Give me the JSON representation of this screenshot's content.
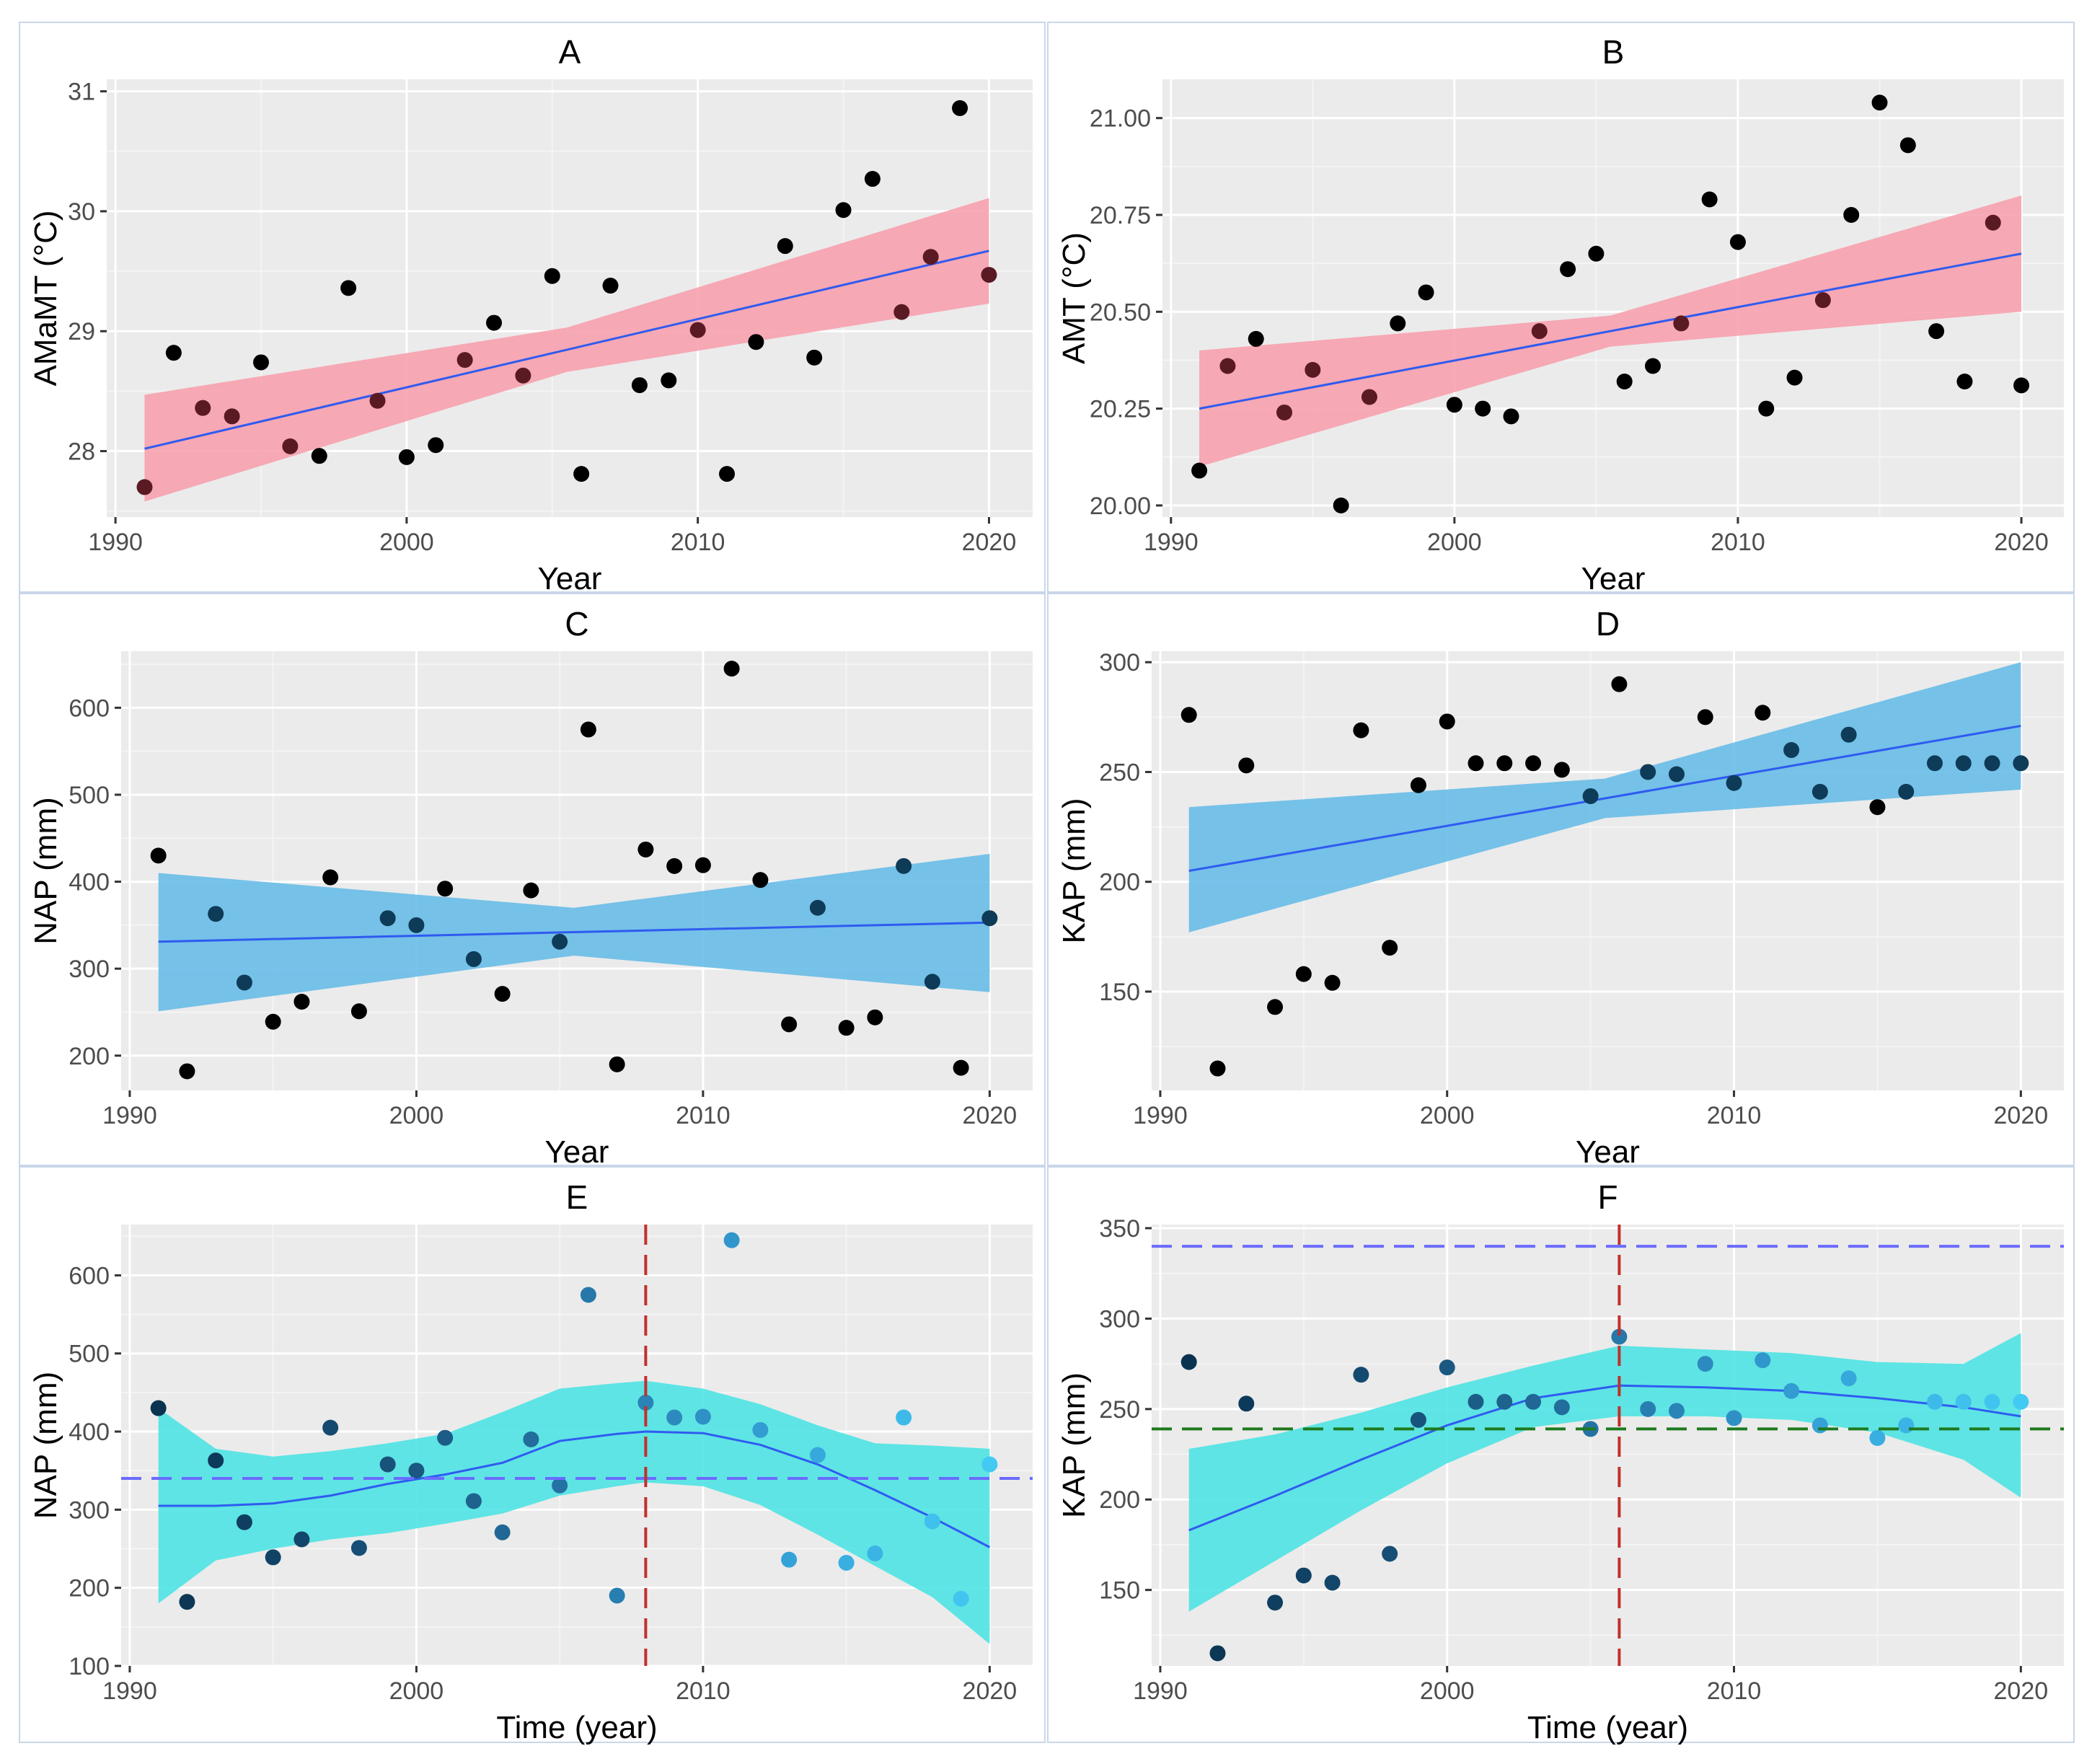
{
  "colors": {
    "plot_bg": "#ebebeb",
    "grid_major": "#ffffff",
    "grid_minor": "#f4f4f4",
    "point": "#000000",
    "trend_line": "#2f5bf0",
    "band_pink": "#f7a1ae",
    "band_blue": "#68bde8",
    "band_cyan": "#4fe3e3",
    "hline_blue": "#6b6bff",
    "hline_green": "#1e7a1e",
    "vline_red": "#c0302c"
  },
  "chart_data": [
    {
      "id": "A",
      "type": "scatter",
      "title": "A",
      "xlabel": "Year",
      "ylabel": "AMaMT (°C)",
      "xlim": [
        1989.7,
        2021.5
      ],
      "ylim": [
        27.45,
        31.1
      ],
      "xticks": [
        1990,
        2000,
        2010,
        2020
      ],
      "xtick_labels": [
        "1990",
        "2000",
        "2010",
        "2020"
      ],
      "yticks": [
        28,
        29,
        30,
        31
      ],
      "ytick_labels": [
        "28",
        "29",
        "30",
        "31"
      ],
      "x": [
        1991,
        1992,
        1993,
        1994,
        1995,
        1996,
        1997,
        1998,
        1999,
        2000,
        2001,
        2002,
        2003,
        2004,
        2005,
        2006,
        2007,
        2008,
        2009,
        2010,
        2011,
        2012,
        2013,
        2014,
        2015,
        2016,
        2017,
        2018,
        2019,
        2020
      ],
      "y": [
        27.7,
        28.82,
        28.36,
        28.29,
        28.74,
        28.04,
        27.96,
        29.36,
        28.42,
        27.95,
        28.05,
        28.76,
        29.07,
        28.63,
        29.46,
        27.81,
        29.38,
        28.55,
        28.59,
        29.01,
        27.81,
        28.91,
        29.71,
        28.78,
        30.01,
        30.27,
        29.16,
        29.62,
        30.86,
        29.47
      ],
      "fit": {
        "x": [
          1991,
          2020
        ],
        "y": [
          28.02,
          29.67
        ]
      },
      "band": {
        "x": [
          1991,
          2005.5,
          2020
        ],
        "lower": [
          27.58,
          28.66,
          29.23
        ],
        "upper": [
          28.47,
          29.03,
          30.11
        ]
      },
      "band_color": "#f7a1ae"
    },
    {
      "id": "B",
      "type": "scatter",
      "title": "B",
      "xlabel": "Year",
      "ylabel": "AMT (°C)",
      "xlim": [
        1989.7,
        2021.5
      ],
      "ylim": [
        19.97,
        21.1
      ],
      "xticks": [
        1990,
        2000,
        2010,
        2020
      ],
      "xtick_labels": [
        "1990",
        "2000",
        "2010",
        "2020"
      ],
      "yticks": [
        20.0,
        20.25,
        20.5,
        20.75,
        21.0
      ],
      "ytick_labels": [
        "20.00",
        "20.25",
        "20.50",
        "20.75",
        "21.00"
      ],
      "x": [
        1991,
        1992,
        1993,
        1994,
        1995,
        1996,
        1997,
        1998,
        1999,
        2000,
        2001,
        2002,
        2003,
        2004,
        2005,
        2006,
        2007,
        2008,
        2009,
        2010,
        2011,
        2012,
        2013,
        2014,
        2015,
        2016,
        2017,
        2018,
        2019,
        2020
      ],
      "y": [
        20.09,
        20.36,
        20.43,
        20.24,
        20.35,
        20.0,
        20.28,
        20.47,
        20.55,
        20.26,
        20.25,
        20.23,
        20.45,
        20.61,
        20.65,
        20.32,
        20.36,
        20.47,
        20.79,
        20.68,
        20.25,
        20.33,
        20.53,
        20.75,
        21.04,
        20.93,
        20.45,
        20.32,
        20.73,
        20.31
      ],
      "fit": {
        "x": [
          1991,
          2020
        ],
        "y": [
          20.25,
          20.65
        ]
      },
      "band": {
        "x": [
          1991,
          2005.5,
          2020
        ],
        "lower": [
          20.1,
          20.41,
          20.5
        ],
        "upper": [
          20.4,
          20.49,
          20.8
        ]
      },
      "band_color": "#f7a1ae"
    },
    {
      "id": "C",
      "type": "scatter",
      "title": "C",
      "xlabel": "Year",
      "ylabel": "NAP (mm)",
      "xlim": [
        1989.7,
        2021.5
      ],
      "ylim": [
        160,
        665
      ],
      "xticks": [
        1990,
        2000,
        2010,
        2020
      ],
      "xtick_labels": [
        "1990",
        "2000",
        "2010",
        "2020"
      ],
      "yticks": [
        200,
        300,
        400,
        500,
        600
      ],
      "ytick_labels": [
        "200",
        "300",
        "400",
        "500",
        "600"
      ],
      "x": [
        1991,
        1992,
        1993,
        1994,
        1995,
        1996,
        1997,
        1998,
        1999,
        2000,
        2001,
        2002,
        2003,
        2004,
        2005,
        2006,
        2007,
        2008,
        2009,
        2010,
        2011,
        2012,
        2013,
        2014,
        2015,
        2016,
        2017,
        2018,
        2019,
        2020
      ],
      "y": [
        430,
        182,
        363,
        284,
        239,
        262,
        405,
        251,
        358,
        350,
        392,
        311,
        271,
        390,
        331,
        575,
        190,
        437,
        418,
        419,
        645,
        402,
        236,
        370,
        232,
        244,
        418,
        285,
        186,
        358
      ],
      "fit": {
        "x": [
          1991,
          2020
        ],
        "y": [
          331,
          353
        ]
      },
      "band": {
        "x": [
          1991,
          2005.5,
          2020
        ],
        "lower": [
          251,
          315,
          273
        ],
        "upper": [
          410,
          370,
          432
        ]
      },
      "band_color": "#68bde8"
    },
    {
      "id": "D",
      "type": "scatter",
      "title": "D",
      "xlabel": "Year",
      "ylabel": "KAP (mm)",
      "xlim": [
        1989.7,
        2021.5
      ],
      "ylim": [
        105,
        305
      ],
      "xticks": [
        1990,
        2000,
        2010,
        2020
      ],
      "xtick_labels": [
        "1990",
        "2000",
        "2010",
        "2020"
      ],
      "yticks": [
        150,
        200,
        250,
        300
      ],
      "ytick_labels": [
        "150",
        "200",
        "250",
        "300"
      ],
      "x": [
        1991,
        1992,
        1993,
        1994,
        1995,
        1996,
        1997,
        1998,
        1999,
        2000,
        2001,
        2002,
        2003,
        2004,
        2005,
        2006,
        2007,
        2008,
        2009,
        2010,
        2011,
        2012,
        2013,
        2014,
        2015,
        2016,
        2017,
        2018,
        2019,
        2020
      ],
      "y": [
        276,
        115,
        253,
        143,
        158,
        154,
        269,
        170,
        244,
        273,
        254,
        254,
        254,
        251,
        239,
        290,
        250,
        249,
        275,
        245,
        277,
        260,
        241,
        267,
        234,
        241,
        254,
        254,
        254,
        254
      ],
      "fit": {
        "x": [
          1991,
          2020
        ],
        "y": [
          205,
          271
        ]
      },
      "band": {
        "x": [
          1991,
          2005.5,
          2020
        ],
        "lower": [
          177,
          229,
          242
        ],
        "upper": [
          234,
          247,
          300
        ]
      },
      "band_color": "#68bde8"
    },
    {
      "id": "E",
      "type": "scatter",
      "title": "E",
      "xlabel": "Time (year)",
      "ylabel": "NAP (mm)",
      "xlim": [
        1989.7,
        2021.5
      ],
      "ylim": [
        100,
        665
      ],
      "xticks": [
        1990,
        2000,
        2010,
        2020
      ],
      "xtick_labels": [
        "1990",
        "2000",
        "2010",
        "2020"
      ],
      "yticks": [
        100,
        200,
        300,
        400,
        500,
        600
      ],
      "ytick_labels": [
        "100",
        "200",
        "300",
        "400",
        "500",
        "600"
      ],
      "x": [
        1991,
        1992,
        1993,
        1994,
        1995,
        1996,
        1997,
        1998,
        1999,
        2000,
        2001,
        2002,
        2003,
        2004,
        2005,
        2006,
        2007,
        2008,
        2009,
        2010,
        2011,
        2012,
        2013,
        2014,
        2015,
        2016,
        2017,
        2018,
        2019,
        2020
      ],
      "y": [
        430,
        182,
        363,
        284,
        239,
        262,
        405,
        251,
        358,
        350,
        392,
        311,
        271,
        390,
        331,
        575,
        190,
        437,
        418,
        419,
        645,
        402,
        236,
        370,
        232,
        244,
        418,
        285,
        186,
        358
      ],
      "fit": {
        "x": [
          1991,
          1993,
          1995,
          1997,
          1999,
          2001,
          2003,
          2005,
          2007,
          2008,
          2010,
          2012,
          2014,
          2016,
          2018,
          2020
        ],
        "y": [
          305,
          305,
          308,
          318,
          333,
          345,
          360,
          388,
          397,
          400,
          398,
          383,
          358,
          325,
          290,
          252
        ]
      },
      "band": {
        "x": [
          1991,
          1993,
          1995,
          1997,
          1999,
          2001,
          2003,
          2005,
          2007,
          2008,
          2010,
          2012,
          2014,
          2016,
          2018,
          2020
        ],
        "lower": [
          180,
          235,
          250,
          262,
          270,
          282,
          295,
          318,
          330,
          335,
          330,
          306,
          268,
          228,
          188,
          128
        ],
        "upper": [
          430,
          378,
          368,
          375,
          385,
          397,
          425,
          455,
          462,
          465,
          455,
          435,
          408,
          385,
          382,
          378
        ]
      },
      "band_color": "#4fe3e3",
      "hlines": [
        {
          "y": 340,
          "color": "#6b6bff"
        }
      ],
      "vlines": [
        {
          "x": 2008,
          "color": "#c0302c"
        }
      ],
      "point_colors": [
        "#0a3350",
        "#0c3755",
        "#0d3a5a",
        "#0f3e60",
        "#104265",
        "#12466b",
        "#144a70",
        "#164e76",
        "#18537c",
        "#1a5882",
        "#1c5d88",
        "#1e628e",
        "#206795",
        "#226d9c",
        "#2472a3",
        "#2678aa",
        "#287eb1",
        "#2b84b8",
        "#2d8abf",
        "#2f90c6",
        "#3196cc",
        "#339cd2",
        "#35a2d7",
        "#37a8dc",
        "#39aee1",
        "#3bb4e5",
        "#3dbae9",
        "#3fc0ed",
        "#41c5f0",
        "#43caf3"
      ]
    },
    {
      "id": "F",
      "type": "scatter",
      "title": "F",
      "xlabel": "Time (year)",
      "ylabel": "KAP (mm)",
      "xlim": [
        1989.7,
        2021.5
      ],
      "ylim": [
        108,
        352
      ],
      "xticks": [
        1990,
        2000,
        2010,
        2020
      ],
      "xtick_labels": [
        "1990",
        "2000",
        "2010",
        "2020"
      ],
      "yticks": [
        150,
        200,
        250,
        300,
        350
      ],
      "ytick_labels": [
        "150",
        "200",
        "250",
        "300",
        "350"
      ],
      "x": [
        1991,
        1992,
        1993,
        1994,
        1995,
        1996,
        1997,
        1998,
        1999,
        2000,
        2001,
        2002,
        2003,
        2004,
        2005,
        2006,
        2007,
        2008,
        2009,
        2010,
        2011,
        2012,
        2013,
        2014,
        2015,
        2016,
        2017,
        2018,
        2019,
        2020
      ],
      "y": [
        276,
        115,
        253,
        143,
        158,
        154,
        269,
        170,
        244,
        273,
        254,
        254,
        254,
        251,
        239,
        290,
        250,
        249,
        275,
        245,
        277,
        260,
        241,
        267,
        234,
        241,
        254,
        254,
        254,
        254
      ],
      "fit": {
        "x": [
          1991,
          1994,
          1997,
          2000,
          2003,
          2006,
          2009,
          2012,
          2015,
          2018,
          2020
        ],
        "y": [
          183,
          202,
          222,
          241,
          256,
          263,
          262,
          260,
          256,
          251,
          246
        ]
      },
      "band": {
        "x": [
          1991,
          1994,
          1997,
          2000,
          2003,
          2006,
          2009,
          2012,
          2015,
          2018,
          2020
        ],
        "lower": [
          138,
          166,
          194,
          220,
          240,
          246,
          246,
          244,
          237,
          222,
          201
        ],
        "upper": [
          228,
          236,
          248,
          262,
          274,
          285,
          283,
          281,
          276,
          275,
          292
        ]
      },
      "band_color": "#4fe3e3",
      "hlines": [
        {
          "y": 340,
          "color": "#6b6bff"
        },
        {
          "y": 239,
          "color": "#1e7a1e"
        }
      ],
      "vlines": [
        {
          "x": 2006,
          "color": "#c0302c"
        }
      ],
      "point_colors": [
        "#0a3350",
        "#0c3755",
        "#0d3a5a",
        "#0f3e60",
        "#104265",
        "#12466b",
        "#144a70",
        "#164e76",
        "#18537c",
        "#1a5882",
        "#1c5d88",
        "#1e628e",
        "#206795",
        "#226d9c",
        "#2472a3",
        "#2678aa",
        "#287eb1",
        "#2b84b8",
        "#2d8abf",
        "#2f90c6",
        "#3196cc",
        "#339cd2",
        "#35a2d7",
        "#37a8dc",
        "#39aee1",
        "#3bb4e5",
        "#3dbae9",
        "#3fc0ed",
        "#41c5f0",
        "#43caf3"
      ]
    }
  ]
}
